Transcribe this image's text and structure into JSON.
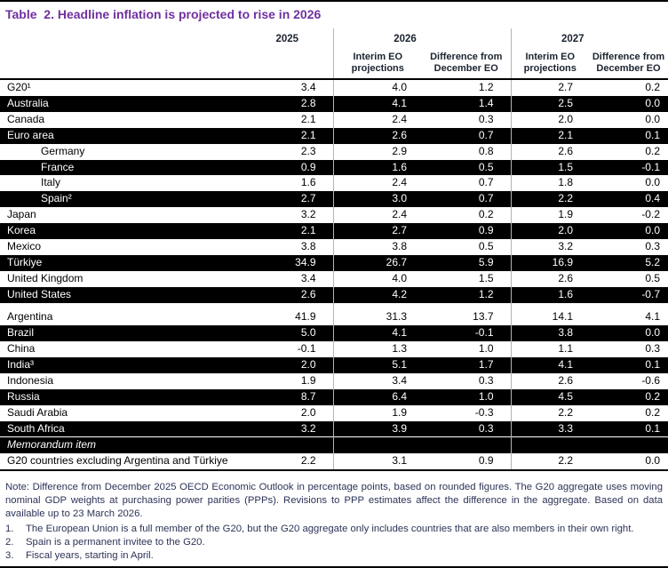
{
  "title": "Table  2. Headline inflation is projected to rise in 2026",
  "colors": {
    "title_purple": "#7030a0",
    "header_text": "#1b2330",
    "note_text": "#2c3357",
    "dark_row_bg": "#000000",
    "dark_row_text": "#ffffff",
    "column_separator": "#b3b3b3",
    "table_border": "#000000"
  },
  "header": {
    "year_2025": "2025",
    "year_2026": "2026",
    "year_2027": "2027",
    "sub_projections": "Interim EO\nprojections",
    "sub_difference": "Difference from\nDecember EO"
  },
  "table": {
    "columns": [
      "2025",
      "2026 Interim EO projections",
      "2026 Difference from December EO",
      "2027 Interim EO projections",
      "2027 Difference from December EO"
    ],
    "rows": [
      {
        "label": "G20¹",
        "values": [
          "3.4",
          "4.0",
          "1.2",
          "2.7",
          "0.2"
        ],
        "dark": false
      },
      {
        "label": "Australia",
        "values": [
          "2.8",
          "4.1",
          "1.4",
          "2.5",
          "0.0"
        ],
        "dark": true
      },
      {
        "label": "Canada",
        "values": [
          "2.1",
          "2.4",
          "0.3",
          "2.0",
          "0.0"
        ],
        "dark": false
      },
      {
        "label": "Euro area",
        "values": [
          "2.1",
          "2.6",
          "0.7",
          "2.1",
          "0.1"
        ],
        "dark": true
      },
      {
        "label": "Germany",
        "values": [
          "2.3",
          "2.9",
          "0.8",
          "2.6",
          "0.2"
        ],
        "dark": false,
        "indent": true
      },
      {
        "label": "France",
        "values": [
          "0.9",
          "1.6",
          "0.5",
          "1.5",
          "-0.1"
        ],
        "dark": true,
        "indent": true
      },
      {
        "label": "Italy",
        "values": [
          "1.6",
          "2.4",
          "0.7",
          "1.8",
          "0.0"
        ],
        "dark": false,
        "indent": true
      },
      {
        "label": "Spain²",
        "values": [
          "2.7",
          "3.0",
          "0.7",
          "2.2",
          "0.4"
        ],
        "dark": true,
        "indent": true
      },
      {
        "label": "Japan",
        "values": [
          "3.2",
          "2.4",
          "0.2",
          "1.9",
          "-0.2"
        ],
        "dark": false
      },
      {
        "label": "Korea",
        "values": [
          "2.1",
          "2.7",
          "0.9",
          "2.0",
          "0.0"
        ],
        "dark": true
      },
      {
        "label": "Mexico",
        "values": [
          "3.8",
          "3.8",
          "0.5",
          "3.2",
          "0.3"
        ],
        "dark": false
      },
      {
        "label": "Türkiye",
        "values": [
          "34.9",
          "26.7",
          "5.9",
          "16.9",
          "5.2"
        ],
        "dark": true
      },
      {
        "label": "United Kingdom",
        "values": [
          "3.4",
          "4.0",
          "1.5",
          "2.6",
          "0.5"
        ],
        "dark": false
      },
      {
        "label": "United States",
        "values": [
          "2.6",
          "4.2",
          "1.2",
          "1.6",
          "-0.7"
        ],
        "dark": true
      },
      {
        "spacer": true
      },
      {
        "label": "Argentina",
        "values": [
          "41.9",
          "31.3",
          "13.7",
          "14.1",
          "4.1"
        ],
        "dark": false
      },
      {
        "label": "Brazil",
        "values": [
          "5.0",
          "4.1",
          "-0.1",
          "3.8",
          "0.0"
        ],
        "dark": true
      },
      {
        "label": "China",
        "values": [
          "-0.1",
          "1.3",
          "1.0",
          "1.1",
          "0.3"
        ],
        "dark": false
      },
      {
        "label": "India³",
        "values": [
          "2.0",
          "5.1",
          "1.7",
          "4.1",
          "0.1"
        ],
        "dark": true
      },
      {
        "label": "Indonesia",
        "values": [
          "1.9",
          "3.4",
          "0.3",
          "2.6",
          "-0.6"
        ],
        "dark": false
      },
      {
        "label": "Russia",
        "values": [
          "8.7",
          "6.4",
          "1.0",
          "4.5",
          "0.2"
        ],
        "dark": true
      },
      {
        "label": "Saudi Arabia",
        "values": [
          "2.0",
          "1.9",
          "-0.3",
          "2.2",
          "0.2"
        ],
        "dark": false
      },
      {
        "label": "South Africa",
        "values": [
          "3.2",
          "3.9",
          "0.3",
          "3.3",
          "0.1"
        ],
        "dark": true
      },
      {
        "label": "Memorandum item",
        "values": [
          "",
          "",
          "",
          "",
          ""
        ],
        "dark": true,
        "italic": true,
        "rule_above": true
      },
      {
        "label": "G20 countries excluding Argentina and Türkiye",
        "values": [
          "2.2",
          "3.1",
          "0.9",
          "2.2",
          "0.0"
        ],
        "dark": false
      }
    ]
  },
  "notes": {
    "note": "Note: Difference from December 2025 OECD Economic Outlook in percentage points, based on rounded figures. The G20 aggregate uses moving nominal GDP weights at purchasing power parities (PPPs). Revisions to PPP estimates affect the difference in the aggregate. Based on data available up to 23 March 2026.",
    "footnotes": [
      {
        "num": "1.",
        "text": "The European Union is a full member of the G20, but the G20 aggregate only includes countries that are also members in their own right."
      },
      {
        "num": "2.",
        "text": "Spain is a permanent invitee to the G20."
      },
      {
        "num": "3.",
        "text": "Fiscal years, starting in April."
      }
    ]
  }
}
